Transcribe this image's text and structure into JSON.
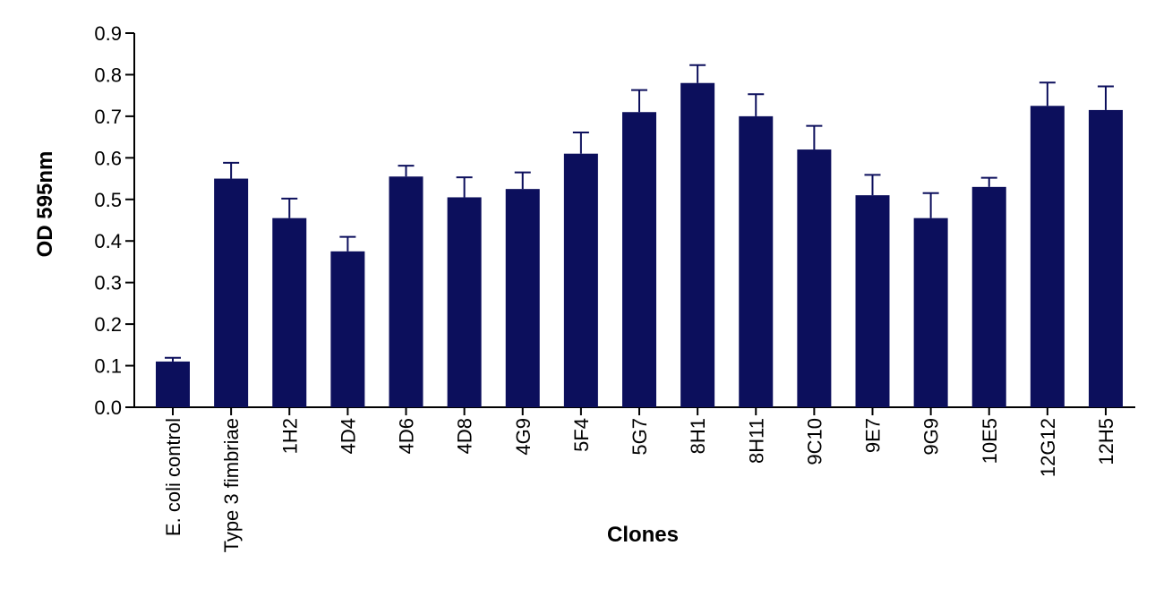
{
  "chart_data": {
    "type": "bar",
    "title": "",
    "xlabel": "Clones",
    "ylabel": "OD 595nm",
    "ylim": [
      0,
      0.9
    ],
    "yticks": [
      "0.0",
      "0.1",
      "0.2",
      "0.3",
      "0.4",
      "0.5",
      "0.6",
      "0.7",
      "0.8",
      "0.9"
    ],
    "grid": false,
    "legend": "none",
    "bar_color": "#0c0f5c",
    "categories": [
      "E. coli control",
      "Type 3 fimbriae",
      "1H2",
      "4D4",
      "4D6",
      "4D8",
      "4G9",
      "5F4",
      "5G7",
      "8H1",
      "8H11",
      "9C10",
      "9E7",
      "9G9",
      "10E5",
      "12G12",
      "12H5"
    ],
    "values": [
      0.11,
      0.55,
      0.455,
      0.375,
      0.555,
      0.505,
      0.525,
      0.61,
      0.71,
      0.78,
      0.7,
      0.62,
      0.51,
      0.455,
      0.53,
      0.725,
      0.715
    ],
    "error_upper": [
      0.009,
      0.038,
      0.047,
      0.035,
      0.026,
      0.048,
      0.04,
      0.051,
      0.053,
      0.043,
      0.053,
      0.057,
      0.049,
      0.06,
      0.022,
      0.056,
      0.057
    ]
  }
}
